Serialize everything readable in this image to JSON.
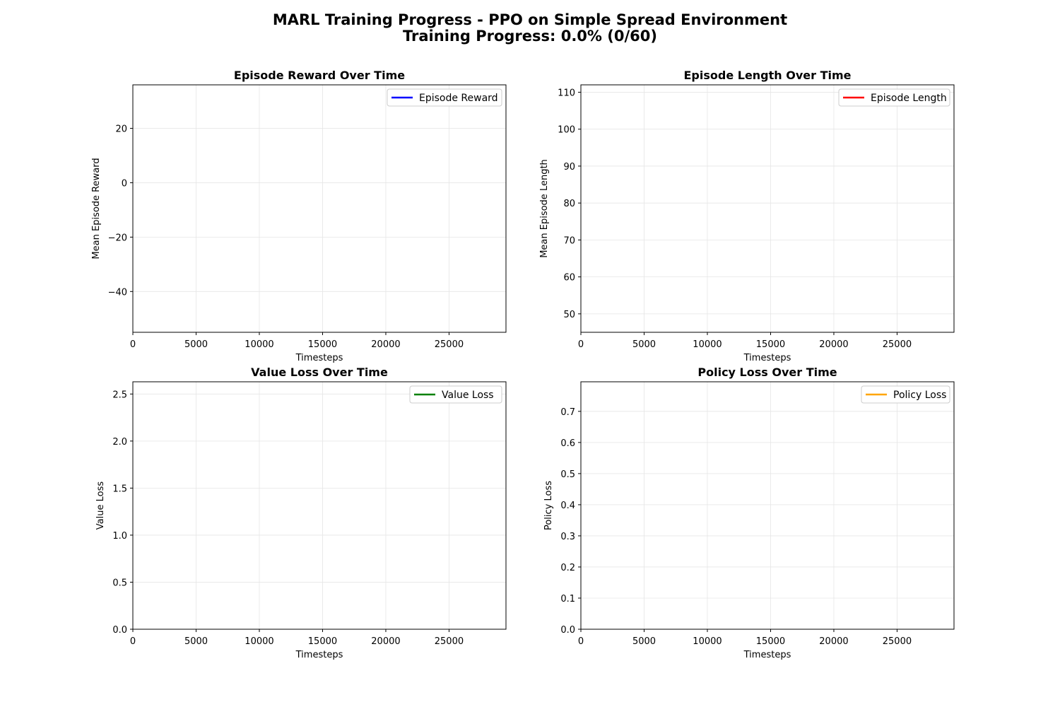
{
  "figure": {
    "title_line1": "MARL Training Progress - PPO on Simple Spread Environment",
    "title_line2": "Training Progress: 0.0% (0/60)"
  },
  "colors": {
    "reward": "#0000ff",
    "length": "#ff0000",
    "value_loss": "#008000",
    "policy_loss": "#ffa500",
    "grid": "#e6e6e6",
    "axis": "#000000"
  },
  "chart_data": [
    {
      "type": "line",
      "title": "Episode Reward Over Time",
      "xlabel": "Timesteps",
      "ylabel": "Mean Episode Reward",
      "xlim": [
        0,
        29500
      ],
      "ylim": [
        -55,
        36
      ],
      "xticks": [
        0,
        5000,
        10000,
        15000,
        20000,
        25000
      ],
      "yticks": [
        -40,
        -20,
        0,
        20
      ],
      "ytick_labels": [
        "−40",
        "−20",
        "0",
        "20"
      ],
      "grid": true,
      "legend_position": "top-right",
      "series": [
        {
          "name": "Episode Reward",
          "color_key": "reward",
          "x": [],
          "y": []
        }
      ]
    },
    {
      "type": "line",
      "title": "Episode Length Over Time",
      "xlabel": "Timesteps",
      "ylabel": "Mean Episode Length",
      "xlim": [
        0,
        29500
      ],
      "ylim": [
        45,
        112
      ],
      "xticks": [
        0,
        5000,
        10000,
        15000,
        20000,
        25000
      ],
      "yticks": [
        50,
        60,
        70,
        80,
        90,
        100,
        110
      ],
      "ytick_labels": [
        "50",
        "60",
        "70",
        "80",
        "90",
        "100",
        "110"
      ],
      "grid": true,
      "legend_position": "top-right",
      "series": [
        {
          "name": "Episode Length",
          "color_key": "length",
          "x": [],
          "y": []
        }
      ]
    },
    {
      "type": "line",
      "title": "Value Loss Over Time",
      "xlabel": "Timesteps",
      "ylabel": "Value Loss",
      "xlim": [
        0,
        29500
      ],
      "ylim": [
        0,
        2.63
      ],
      "xticks": [
        0,
        5000,
        10000,
        15000,
        20000,
        25000
      ],
      "yticks": [
        0,
        0.5,
        1.0,
        1.5,
        2.0,
        2.5
      ],
      "ytick_labels": [
        "0.0",
        "0.5",
        "1.0",
        "1.5",
        "2.0",
        "2.5"
      ],
      "grid": true,
      "legend_position": "top-right",
      "series": [
        {
          "name": "Value Loss",
          "color_key": "value_loss",
          "x": [],
          "y": []
        }
      ]
    },
    {
      "type": "line",
      "title": "Policy Loss Over Time",
      "xlabel": "Timesteps",
      "ylabel": "Policy Loss",
      "xlim": [
        0,
        29500
      ],
      "ylim": [
        0,
        0.795
      ],
      "xticks": [
        0,
        5000,
        10000,
        15000,
        20000,
        25000
      ],
      "yticks": [
        0,
        0.1,
        0.2,
        0.3,
        0.4,
        0.5,
        0.6,
        0.7
      ],
      "ytick_labels": [
        "0.0",
        "0.1",
        "0.2",
        "0.3",
        "0.4",
        "0.5",
        "0.6",
        "0.7"
      ],
      "grid": true,
      "legend_position": "top-right",
      "series": [
        {
          "name": "Policy Loss",
          "color_key": "policy_loss",
          "x": [],
          "y": []
        }
      ]
    }
  ]
}
